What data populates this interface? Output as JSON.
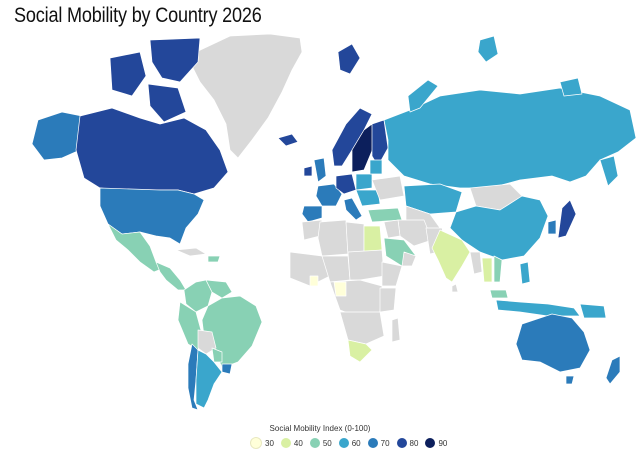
{
  "title": "Social Mobility by Country 2026",
  "legend": {
    "title": "Social Mobility Index (0-100)",
    "items": [
      {
        "label": "30",
        "color": "#ffffd9"
      },
      {
        "label": "40",
        "color": "#d9f0a3"
      },
      {
        "label": "50",
        "color": "#88d1b4"
      },
      {
        "label": "60",
        "color": "#3aa6cc"
      },
      {
        "label": "70",
        "color": "#2b7bba"
      },
      {
        "label": "80",
        "color": "#23479a"
      },
      {
        "label": "90",
        "color": "#0c1f5c"
      }
    ]
  },
  "no_data_color": "#d9d9d9"
}
